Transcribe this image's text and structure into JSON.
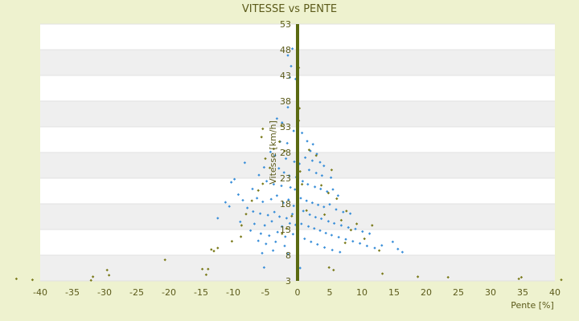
{
  "chart_data": {
    "type": "scatter",
    "title": "VITESSE vs PENTE",
    "xlabel": "Pente [%]",
    "ylabel": "Vitesse [km/h]",
    "xlim": [
      -40,
      40
    ],
    "ylim": [
      3,
      53
    ],
    "xticks": [
      -40,
      -35,
      -30,
      -25,
      -20,
      -15,
      -10,
      -5,
      0,
      5,
      10,
      15,
      20,
      25,
      30,
      35,
      40
    ],
    "yticks": [
      3,
      8,
      13,
      18,
      23,
      28,
      33,
      38,
      43,
      48,
      53
    ],
    "grid": true,
    "legend": "none",
    "colors": {
      "background": "#eef2cf",
      "plot_band_light": "#ffffff",
      "plot_band_dark": "#efefef",
      "series_blue": "#3a8fd9",
      "series_olive": "#7a7a1a",
      "vertical_line": "#5b6a12",
      "text": "#5b5a1a"
    },
    "series": [
      {
        "values": [
          [
            -0.8,
            48.2
          ],
          [
            -1.5,
            46.9
          ],
          [
            -1.0,
            44.8
          ],
          [
            -1.2,
            42.6
          ],
          [
            -0.3,
            42.3
          ],
          [
            -1.5,
            36.8
          ],
          [
            -3.2,
            34.6
          ],
          [
            -2.4,
            33.8
          ],
          [
            -0.6,
            32.2
          ],
          [
            -1.6,
            29.8
          ],
          [
            -2.7,
            30.1
          ],
          [
            -4.2,
            28.1
          ],
          [
            -3.5,
            27.4
          ],
          [
            -1.8,
            26.8
          ],
          [
            -0.5,
            26.2
          ],
          [
            -8.2,
            26.0
          ],
          [
            -10.3,
            22.2
          ],
          [
            -9.8,
            22.8
          ],
          [
            -6.0,
            23.6
          ],
          [
            -5.2,
            25.1
          ],
          [
            -2.9,
            24.9
          ],
          [
            -2.1,
            24.1
          ],
          [
            -1.3,
            23.5
          ],
          [
            -0.2,
            23.2
          ],
          [
            -4.8,
            22.4
          ],
          [
            -3.7,
            21.8
          ],
          [
            -2.5,
            21.5
          ],
          [
            -1.1,
            21.2
          ],
          [
            -0.4,
            20.8
          ],
          [
            -7.0,
            20.9
          ],
          [
            -9.2,
            19.8
          ],
          [
            -8.5,
            18.7
          ],
          [
            -6.3,
            19.1
          ],
          [
            -5.4,
            18.4
          ],
          [
            -4.1,
            18.9
          ],
          [
            -3.2,
            19.6
          ],
          [
            -2.2,
            18.2
          ],
          [
            -1.4,
            18.8
          ],
          [
            -0.6,
            17.6
          ],
          [
            -11.2,
            18.3
          ],
          [
            -10.6,
            17.5
          ],
          [
            -7.8,
            17.2
          ],
          [
            -6.9,
            16.5
          ],
          [
            -5.8,
            16.1
          ],
          [
            -4.6,
            15.8
          ],
          [
            -3.6,
            16.4
          ],
          [
            -2.8,
            15.5
          ],
          [
            -1.7,
            15.2
          ],
          [
            -0.8,
            16.0
          ],
          [
            -12.4,
            15.2
          ],
          [
            -8.9,
            14.5
          ],
          [
            -6.7,
            14.1
          ],
          [
            -5.1,
            13.8
          ],
          [
            -4.0,
            14.6
          ],
          [
            -2.4,
            13.6
          ],
          [
            -1.2,
            14.2
          ],
          [
            -0.3,
            13.9
          ],
          [
            -7.3,
            12.8
          ],
          [
            -5.7,
            12.2
          ],
          [
            -4.4,
            11.8
          ],
          [
            -3.1,
            12.5
          ],
          [
            -1.9,
            11.6
          ],
          [
            -0.7,
            12.1
          ],
          [
            -6.1,
            10.8
          ],
          [
            -4.9,
            10.2
          ],
          [
            -3.4,
            10.6
          ],
          [
            -2.0,
            9.8
          ],
          [
            -5.5,
            8.4
          ],
          [
            -3.8,
            8.9
          ],
          [
            -1.5,
            8.2
          ],
          [
            -5.2,
            5.6
          ],
          [
            0.4,
            5.5
          ],
          [
            1.2,
            27.0
          ],
          [
            2.3,
            26.4
          ],
          [
            3.5,
            26.1
          ],
          [
            4.1,
            25.4
          ],
          [
            1.8,
            24.6
          ],
          [
            2.9,
            24.0
          ],
          [
            3.8,
            23.5
          ],
          [
            5.2,
            23.1
          ],
          [
            0.8,
            22.4
          ],
          [
            1.6,
            21.8
          ],
          [
            2.7,
            21.3
          ],
          [
            3.6,
            20.9
          ],
          [
            4.6,
            20.4
          ],
          [
            5.5,
            20.8
          ],
          [
            6.3,
            19.6
          ],
          [
            0.5,
            19.1
          ],
          [
            1.4,
            18.6
          ],
          [
            2.3,
            18.2
          ],
          [
            3.2,
            17.8
          ],
          [
            4.1,
            17.4
          ],
          [
            5.0,
            17.9
          ],
          [
            6.0,
            16.9
          ],
          [
            7.1,
            16.4
          ],
          [
            8.2,
            16.1
          ],
          [
            0.9,
            16.6
          ],
          [
            1.9,
            15.9
          ],
          [
            2.8,
            15.4
          ],
          [
            3.7,
            15.1
          ],
          [
            4.8,
            14.6
          ],
          [
            5.7,
            14.2
          ],
          [
            6.8,
            13.8
          ],
          [
            7.9,
            13.4
          ],
          [
            9.0,
            13.1
          ],
          [
            10.1,
            12.6
          ],
          [
            11.2,
            12.2
          ],
          [
            0.6,
            14.1
          ],
          [
            1.7,
            13.6
          ],
          [
            2.6,
            13.2
          ],
          [
            3.5,
            12.8
          ],
          [
            4.4,
            12.3
          ],
          [
            5.3,
            11.9
          ],
          [
            6.4,
            11.5
          ],
          [
            7.5,
            11.1
          ],
          [
            8.6,
            10.7
          ],
          [
            9.7,
            10.3
          ],
          [
            10.8,
            9.8
          ],
          [
            12.0,
            9.4
          ],
          [
            14.8,
            10.6
          ],
          [
            15.6,
            9.2
          ],
          [
            16.3,
            8.6
          ],
          [
            13.1,
            9.9
          ],
          [
            1.1,
            11.2
          ],
          [
            2.1,
            10.6
          ],
          [
            3.1,
            10.1
          ],
          [
            4.2,
            9.5
          ],
          [
            5.4,
            9.0
          ],
          [
            6.6,
            8.6
          ],
          [
            0.3,
            25.8
          ],
          [
            2.0,
            28.3
          ],
          [
            3.0,
            27.7
          ],
          [
            1.5,
            30.2
          ],
          [
            2.4,
            29.6
          ],
          [
            0.7,
            31.8
          ]
        ]
      },
      {
        "values": [
          [
            -41.2,
            3.2
          ],
          [
            -43.7,
            3.4
          ],
          [
            -32.1,
            3.1
          ],
          [
            -31.8,
            3.8
          ],
          [
            -29.6,
            5.1
          ],
          [
            -29.3,
            4.1
          ],
          [
            -20.6,
            7.1
          ],
          [
            -14.8,
            5.3
          ],
          [
            -14.2,
            4.2
          ],
          [
            -13.9,
            5.3
          ],
          [
            -13.4,
            9.1
          ],
          [
            -13.0,
            8.8
          ],
          [
            -12.4,
            9.4
          ],
          [
            -10.2,
            10.7
          ],
          [
            -8.8,
            11.6
          ],
          [
            -8.7,
            13.8
          ],
          [
            -8.0,
            16.0
          ],
          [
            -7.1,
            18.6
          ],
          [
            -6.1,
            20.6
          ],
          [
            -5.4,
            21.9
          ],
          [
            -5.0,
            26.8
          ],
          [
            -5.6,
            31.0
          ],
          [
            -5.4,
            32.6
          ],
          [
            -4.3,
            25.0
          ],
          [
            -2.8,
            30.1
          ],
          [
            -2.5,
            33.2
          ],
          [
            -3.7,
            28.7
          ],
          [
            -2.4,
            12.2
          ],
          [
            -1.7,
            13.2
          ],
          [
            -0.9,
            15.6
          ],
          [
            -2.0,
            28.3
          ],
          [
            0.4,
            24.3
          ],
          [
            0.7,
            21.8
          ],
          [
            1.4,
            16.7
          ],
          [
            1.8,
            28.5
          ],
          [
            2.9,
            27.4
          ],
          [
            3.7,
            21.6
          ],
          [
            4.2,
            15.9
          ],
          [
            4.8,
            20.1
          ],
          [
            5.3,
            24.6
          ],
          [
            6.1,
            19.0
          ],
          [
            6.8,
            14.8
          ],
          [
            7.6,
            16.6
          ],
          [
            8.3,
            12.9
          ],
          [
            9.2,
            14.1
          ],
          [
            10.4,
            11.2
          ],
          [
            11.6,
            13.8
          ],
          [
            12.7,
            8.9
          ],
          [
            13.2,
            4.4
          ],
          [
            7.4,
            10.4
          ],
          [
            4.9,
            5.6
          ],
          [
            5.6,
            5.1
          ],
          [
            0.2,
            34.2
          ],
          [
            0.3,
            36.6
          ],
          [
            0.2,
            44.5
          ],
          [
            18.7,
            3.8
          ],
          [
            23.4,
            3.7
          ],
          [
            34.4,
            3.4
          ],
          [
            34.8,
            3.7
          ],
          [
            41.0,
            3.2
          ]
        ]
      }
    ]
  }
}
